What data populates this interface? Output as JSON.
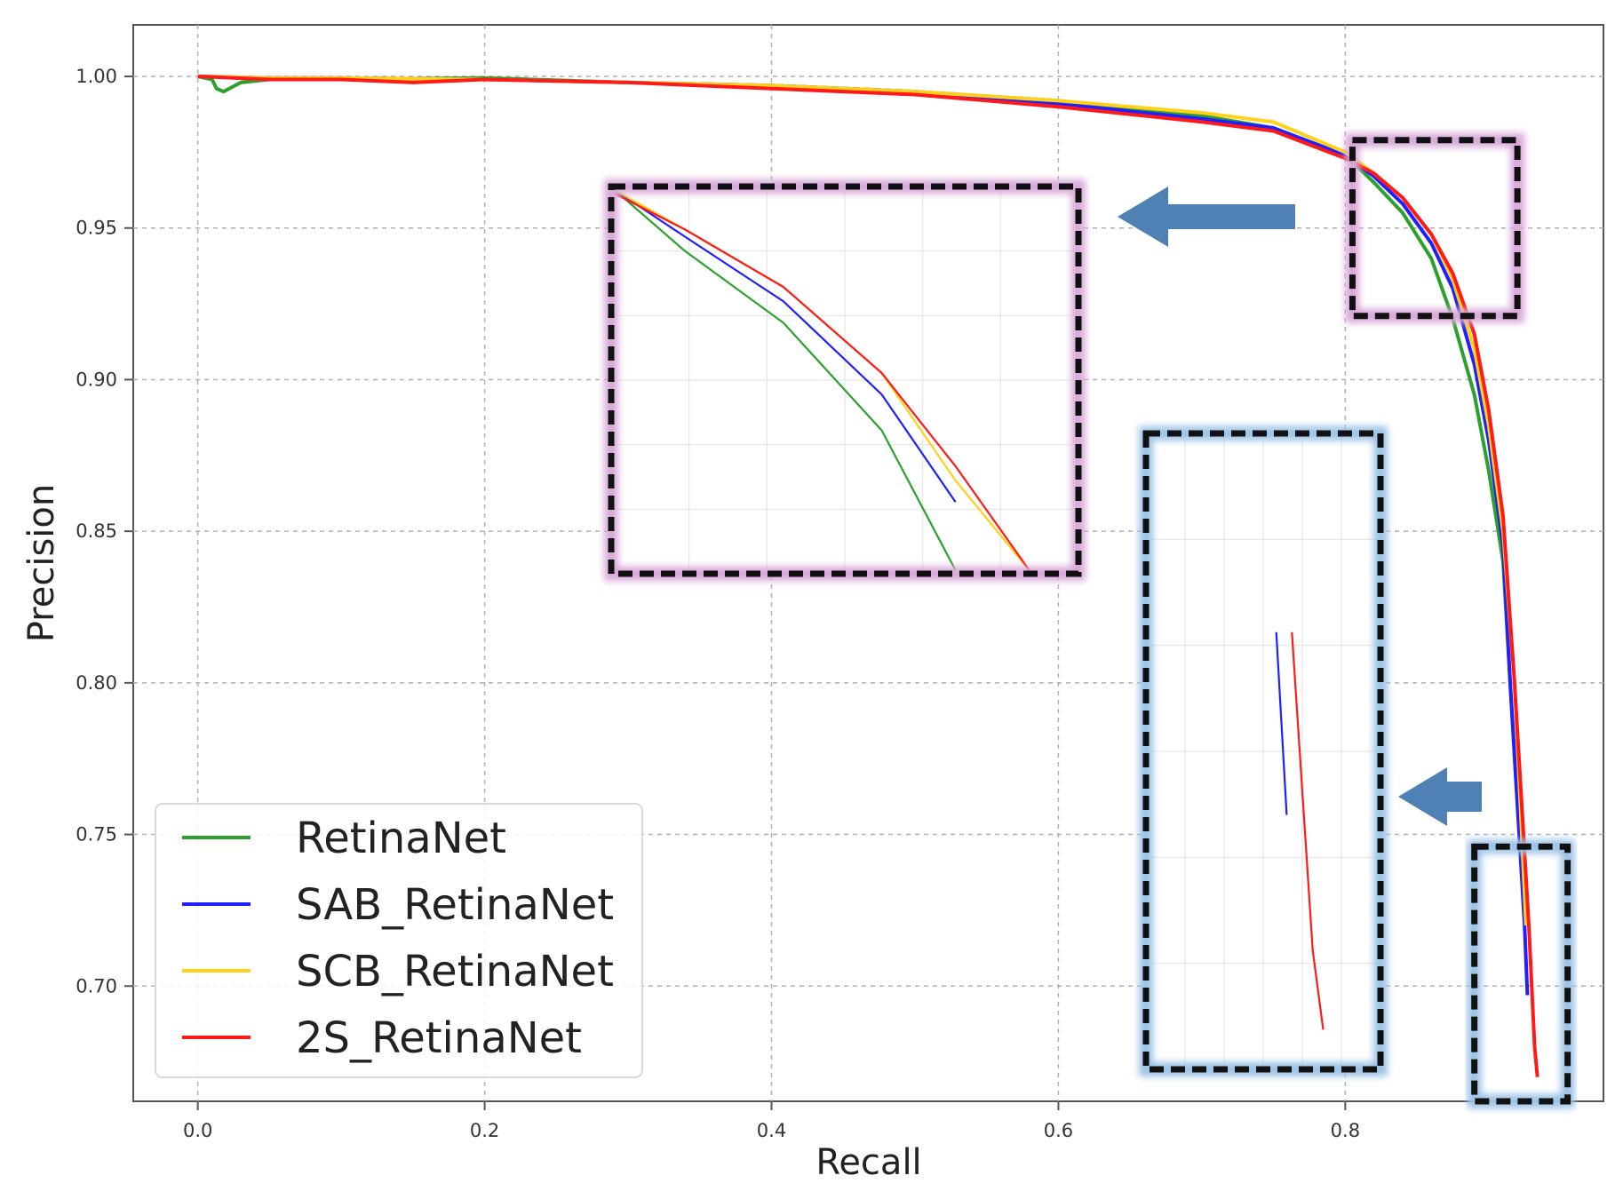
{
  "chart_data": {
    "type": "line",
    "title": "",
    "xlabel": "Recall",
    "ylabel": "Precision",
    "xlim": [
      -0.045,
      0.98
    ],
    "ylim": [
      0.662,
      1.017
    ],
    "x_ticks": [
      0.0,
      0.2,
      0.4,
      0.6,
      0.8
    ],
    "x_tick_labels": [
      "0.0",
      "0.2",
      "0.4",
      "0.6",
      "0.8"
    ],
    "y_ticks": [
      0.7,
      0.75,
      0.8,
      0.85,
      0.9,
      0.95,
      1.0
    ],
    "y_tick_labels": [
      "0.70",
      "0.75",
      "0.80",
      "0.85",
      "0.90",
      "0.95",
      "1.00"
    ],
    "grid": true,
    "legend_position": "bottom-left",
    "series": [
      {
        "name": "RetinaNet",
        "color": "#2ca02c",
        "points": [
          [
            0.0,
            1.0
          ],
          [
            0.01,
            0.999
          ],
          [
            0.013,
            0.996
          ],
          [
            0.018,
            0.995
          ],
          [
            0.03,
            0.998
          ],
          [
            0.05,
            0.999
          ],
          [
            0.1,
            0.999
          ],
          [
            0.2,
            0.9995
          ],
          [
            0.3,
            0.998
          ],
          [
            0.4,
            0.997
          ],
          [
            0.5,
            0.995
          ],
          [
            0.6,
            0.992
          ],
          [
            0.7,
            0.987
          ],
          [
            0.75,
            0.983
          ],
          [
            0.8,
            0.974
          ],
          [
            0.82,
            0.965
          ],
          [
            0.84,
            0.955
          ],
          [
            0.86,
            0.94
          ],
          [
            0.875,
            0.92
          ],
          [
            0.89,
            0.895
          ],
          [
            0.9,
            0.87
          ],
          [
            0.91,
            0.84
          ],
          [
            0.915,
            0.8
          ],
          [
            0.92,
            0.76
          ],
          [
            0.923,
            0.74
          ]
        ]
      },
      {
        "name": "SAB_RetinaNet",
        "color": "#1f1fff",
        "points": [
          [
            0.0,
            1.0
          ],
          [
            0.05,
            0.9995
          ],
          [
            0.1,
            0.9995
          ],
          [
            0.2,
            0.999
          ],
          [
            0.3,
            0.998
          ],
          [
            0.4,
            0.997
          ],
          [
            0.5,
            0.995
          ],
          [
            0.6,
            0.991
          ],
          [
            0.7,
            0.986
          ],
          [
            0.75,
            0.983
          ],
          [
            0.8,
            0.974
          ],
          [
            0.82,
            0.967
          ],
          [
            0.84,
            0.958
          ],
          [
            0.86,
            0.945
          ],
          [
            0.875,
            0.93
          ],
          [
            0.89,
            0.905
          ],
          [
            0.9,
            0.88
          ],
          [
            0.91,
            0.845
          ],
          [
            0.915,
            0.8
          ],
          [
            0.92,
            0.76
          ],
          [
            0.925,
            0.72
          ],
          [
            0.927,
            0.697
          ]
        ]
      },
      {
        "name": "SCB_RetinaNet",
        "color": "#ffd11a",
        "points": [
          [
            0.0,
            1.0
          ],
          [
            0.05,
            0.9995
          ],
          [
            0.1,
            0.9995
          ],
          [
            0.2,
            0.999
          ],
          [
            0.3,
            0.998
          ],
          [
            0.4,
            0.997
          ],
          [
            0.5,
            0.995
          ],
          [
            0.6,
            0.992
          ],
          [
            0.7,
            0.988
          ],
          [
            0.75,
            0.985
          ],
          [
            0.8,
            0.975
          ],
          [
            0.82,
            0.968
          ],
          [
            0.84,
            0.96
          ],
          [
            0.86,
            0.948
          ],
          [
            0.875,
            0.933
          ],
          [
            0.89,
            0.91
          ],
          [
            0.9,
            0.885
          ],
          [
            0.91,
            0.85
          ],
          [
            0.918,
            0.8
          ],
          [
            0.922,
            0.76
          ],
          [
            0.926,
            0.72
          ]
        ]
      },
      {
        "name": "2S_RetinaNet",
        "color": "#ff1a1a",
        "points": [
          [
            0.0,
            1.0
          ],
          [
            0.05,
            0.999
          ],
          [
            0.1,
            0.999
          ],
          [
            0.15,
            0.998
          ],
          [
            0.2,
            0.999
          ],
          [
            0.3,
            0.998
          ],
          [
            0.4,
            0.996
          ],
          [
            0.5,
            0.994
          ],
          [
            0.6,
            0.99
          ],
          [
            0.7,
            0.985
          ],
          [
            0.75,
            0.982
          ],
          [
            0.8,
            0.973
          ],
          [
            0.82,
            0.968
          ],
          [
            0.84,
            0.96
          ],
          [
            0.86,
            0.948
          ],
          [
            0.875,
            0.935
          ],
          [
            0.89,
            0.915
          ],
          [
            0.9,
            0.89
          ],
          [
            0.91,
            0.855
          ],
          [
            0.918,
            0.8
          ],
          [
            0.923,
            0.76
          ],
          [
            0.928,
            0.72
          ],
          [
            0.932,
            0.68
          ],
          [
            0.934,
            0.67
          ]
        ]
      }
    ],
    "zoom_regions": [
      {
        "name": "upper-zoom",
        "xlim": [
          0.805,
          0.92
        ],
        "ylim": [
          0.921,
          0.979
        ],
        "border_color": "#111111",
        "glow_color": "#d9a9d9",
        "inset_xlim": [
          0.805,
          0.9
        ],
        "inset_ylim": [
          0.92,
          0.974
        ]
      },
      {
        "name": "lower-zoom",
        "xlim": [
          0.89,
          0.955
        ],
        "ylim": [
          0.662,
          0.746
        ],
        "border_color": "#111111",
        "glow_color": "#9cc3e6",
        "inset_xlim": [
          0.9,
          0.945
        ],
        "inset_ylim": [
          0.665,
          0.745
        ]
      }
    ],
    "arrow_color": "#4f81b5"
  }
}
